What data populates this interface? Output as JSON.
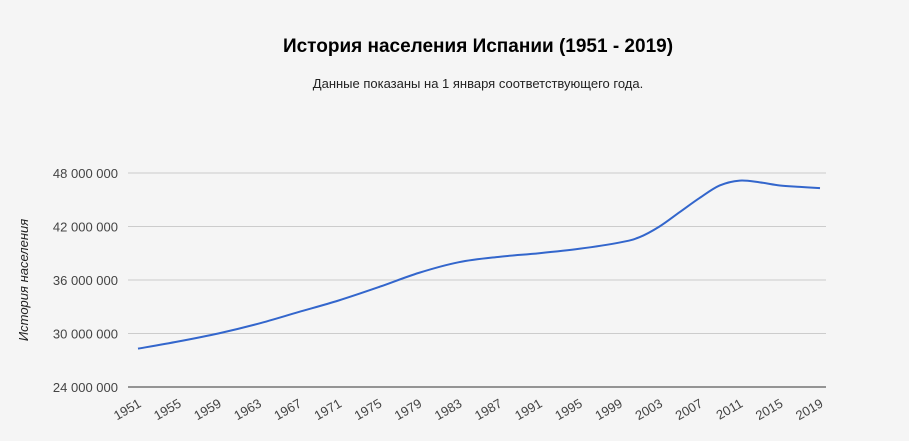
{
  "chart_data": {
    "type": "line",
    "title": "История населения Испании (1951 - 2019)",
    "subtitle": "Данные показаны на 1 января соответствующего года.",
    "ylabel": "История населения",
    "xlabel": "",
    "ylim": [
      24000000,
      48000000
    ],
    "xlim": [
      1951,
      2019
    ],
    "grid": true,
    "line_color": "#3366cc",
    "x_ticks": [
      {
        "value": 1951,
        "label": "1951"
      },
      {
        "value": 1955,
        "label": "1955"
      },
      {
        "value": 1959,
        "label": "1959"
      },
      {
        "value": 1963,
        "label": "1963"
      },
      {
        "value": 1967,
        "label": "1967"
      },
      {
        "value": 1971,
        "label": "1971"
      },
      {
        "value": 1975,
        "label": "1975"
      },
      {
        "value": 1979,
        "label": "1979"
      },
      {
        "value": 1983,
        "label": "1983"
      },
      {
        "value": 1987,
        "label": "1987"
      },
      {
        "value": 1991,
        "label": "1991"
      },
      {
        "value": 1995,
        "label": "1995"
      },
      {
        "value": 1999,
        "label": "1999"
      },
      {
        "value": 2003,
        "label": "2003"
      },
      {
        "value": 2007,
        "label": "2007"
      },
      {
        "value": 2011,
        "label": "2011"
      },
      {
        "value": 2015,
        "label": "2015"
      },
      {
        "value": 2019,
        "label": "2019"
      }
    ],
    "y_ticks": [
      {
        "value": 24000000,
        "label": "24 000 000"
      },
      {
        "value": 30000000,
        "label": "30 000 000"
      },
      {
        "value": 36000000,
        "label": "36 000 000"
      },
      {
        "value": 42000000,
        "label": "42 000 000"
      },
      {
        "value": 48000000,
        "label": "48 000 000"
      }
    ],
    "series": [
      {
        "x": [
          1951,
          1955,
          1959,
          1963,
          1967,
          1971,
          1975,
          1979,
          1983,
          1987,
          1991,
          1995,
          1999,
          2001,
          2003,
          2005,
          2007,
          2009,
          2011,
          2013,
          2015,
          2017,
          2019
        ],
        "values": [
          28300000,
          29100000,
          30000000,
          31100000,
          32400000,
          33700000,
          35200000,
          36800000,
          38000000,
          38600000,
          39000000,
          39500000,
          40200000,
          40800000,
          42000000,
          43600000,
          45200000,
          46600000,
          47150000,
          46950000,
          46600000,
          46450000,
          46300000
        ]
      }
    ]
  }
}
